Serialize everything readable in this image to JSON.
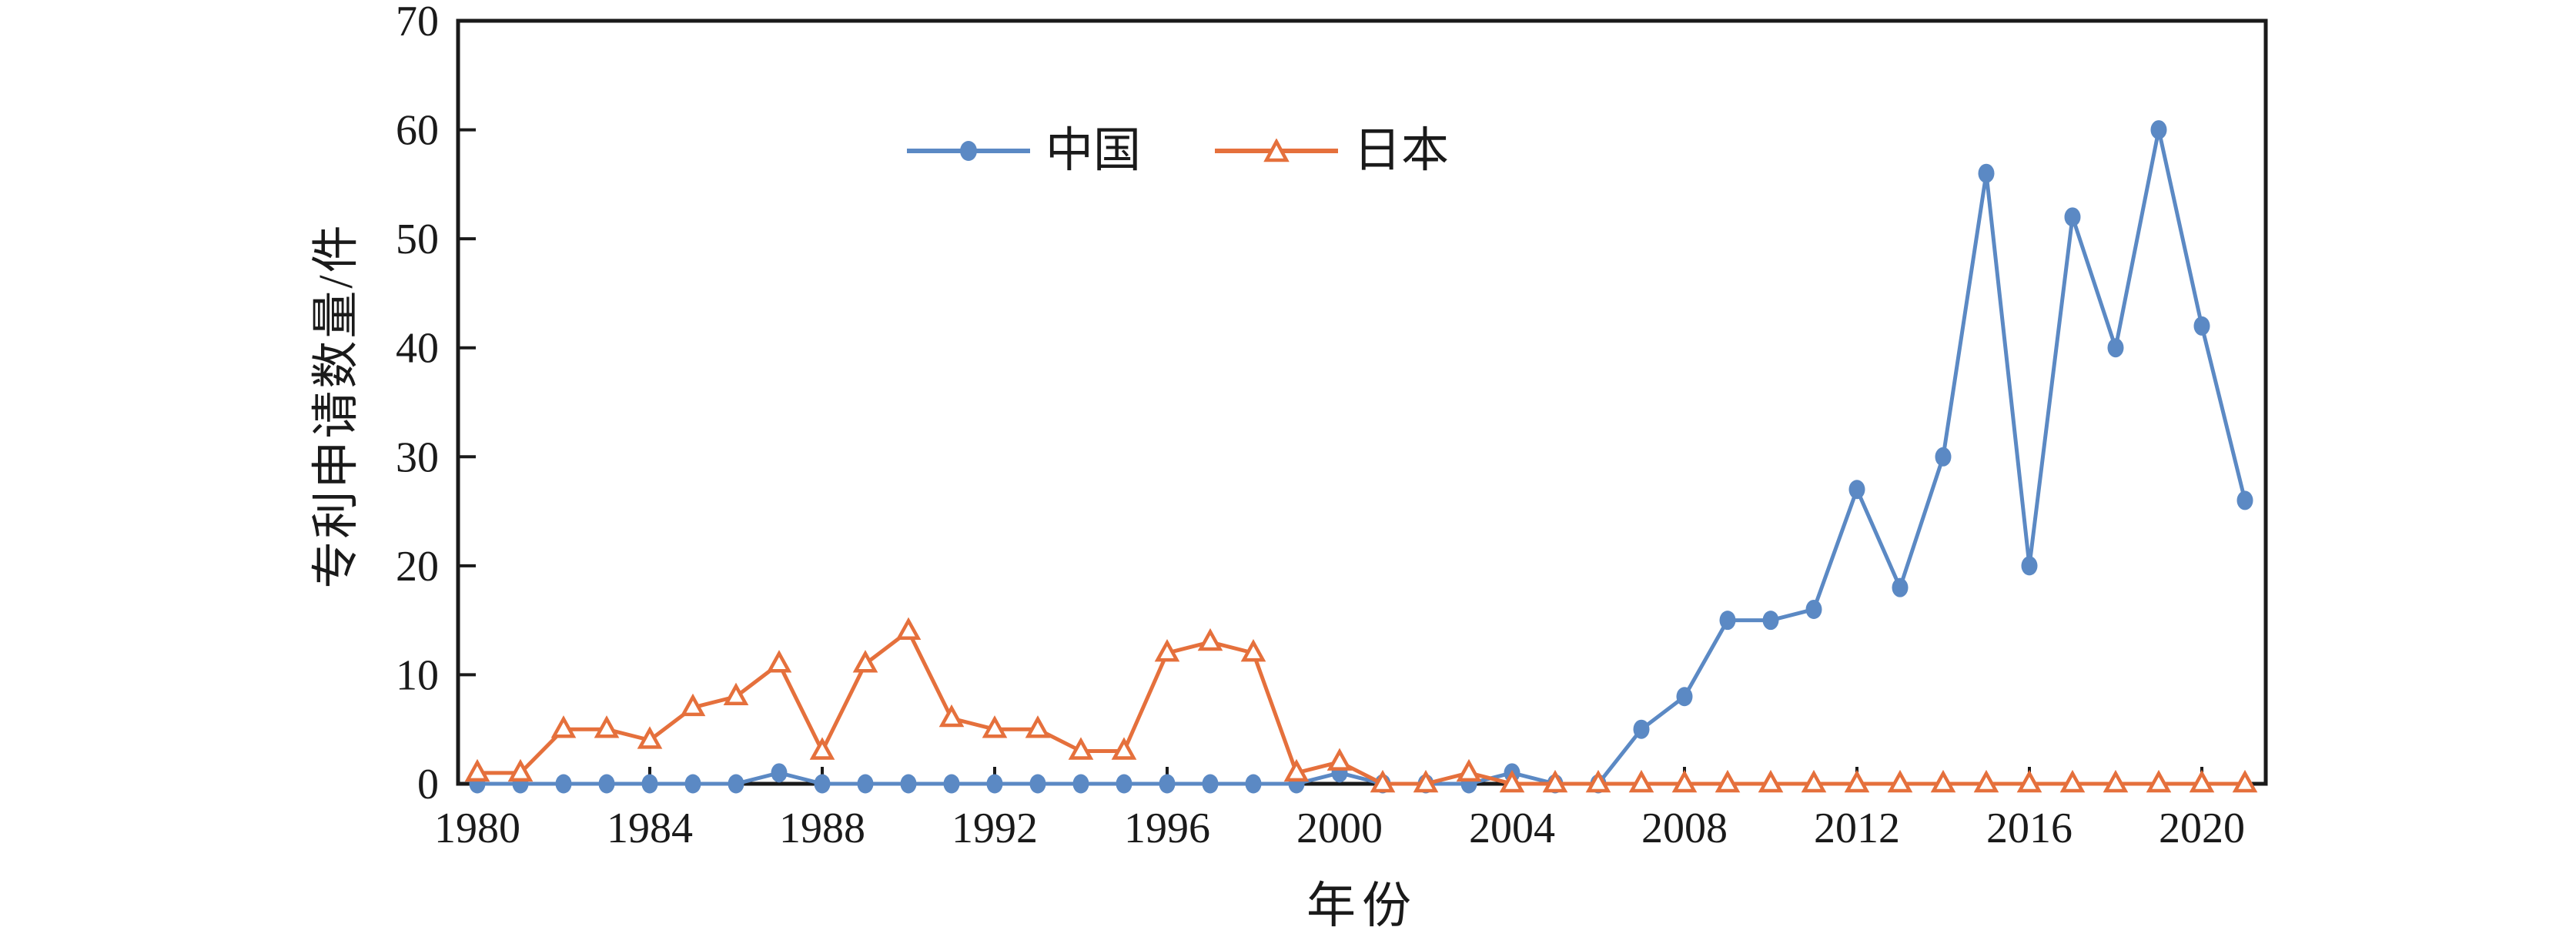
{
  "chart_data": {
    "type": "line",
    "title": "",
    "xlabel": "年份",
    "ylabel": "专利申请数量/件",
    "x": [
      1980,
      1981,
      1982,
      1983,
      1984,
      1985,
      1986,
      1987,
      1988,
      1989,
      1990,
      1991,
      1992,
      1993,
      1994,
      1995,
      1996,
      1997,
      1998,
      1999,
      2000,
      2001,
      2002,
      2003,
      2004,
      2005,
      2006,
      2007,
      2008,
      2009,
      2010,
      2011,
      2012,
      2013,
      2014,
      2015,
      2016,
      2017,
      2018,
      2019,
      2020,
      2021
    ],
    "series": [
      {
        "name": "中国",
        "marker": "filled-circle",
        "color": "#5B89C4",
        "values": [
          0,
          0,
          0,
          0,
          0,
          0,
          0,
          1,
          0,
          0,
          0,
          0,
          0,
          0,
          0,
          0,
          0,
          0,
          0,
          0,
          1,
          0,
          0,
          0,
          1,
          0,
          0,
          5,
          8,
          15,
          15,
          16,
          27,
          18,
          30,
          56,
          20,
          52,
          40,
          60,
          42,
          26
        ]
      },
      {
        "name": "日本",
        "marker": "open-triangle",
        "color": "#E5703C",
        "values": [
          1,
          1,
          5,
          5,
          4,
          7,
          8,
          11,
          3,
          11,
          14,
          6,
          5,
          5,
          3,
          3,
          12,
          13,
          12,
          1,
          2,
          0,
          0,
          1,
          0,
          0,
          0,
          0,
          0,
          0,
          0,
          0,
          0,
          0,
          0,
          0,
          0,
          0,
          0,
          0,
          0,
          0
        ]
      }
    ],
    "ylim": [
      0,
      70
    ],
    "ytick_step": 10,
    "y_tick_labels": [
      "0",
      "10",
      "20",
      "30",
      "40",
      "50",
      "60",
      "70"
    ],
    "x_tick_labels": [
      "1980",
      "1984",
      "1988",
      "1992",
      "1996",
      "2000",
      "2004",
      "2008",
      "2012",
      "2016",
      "2020"
    ],
    "grid": false,
    "frame": "box",
    "legend_position": "top-center",
    "axis_color": "#1a1a1a",
    "background_color": "#ffffff"
  }
}
